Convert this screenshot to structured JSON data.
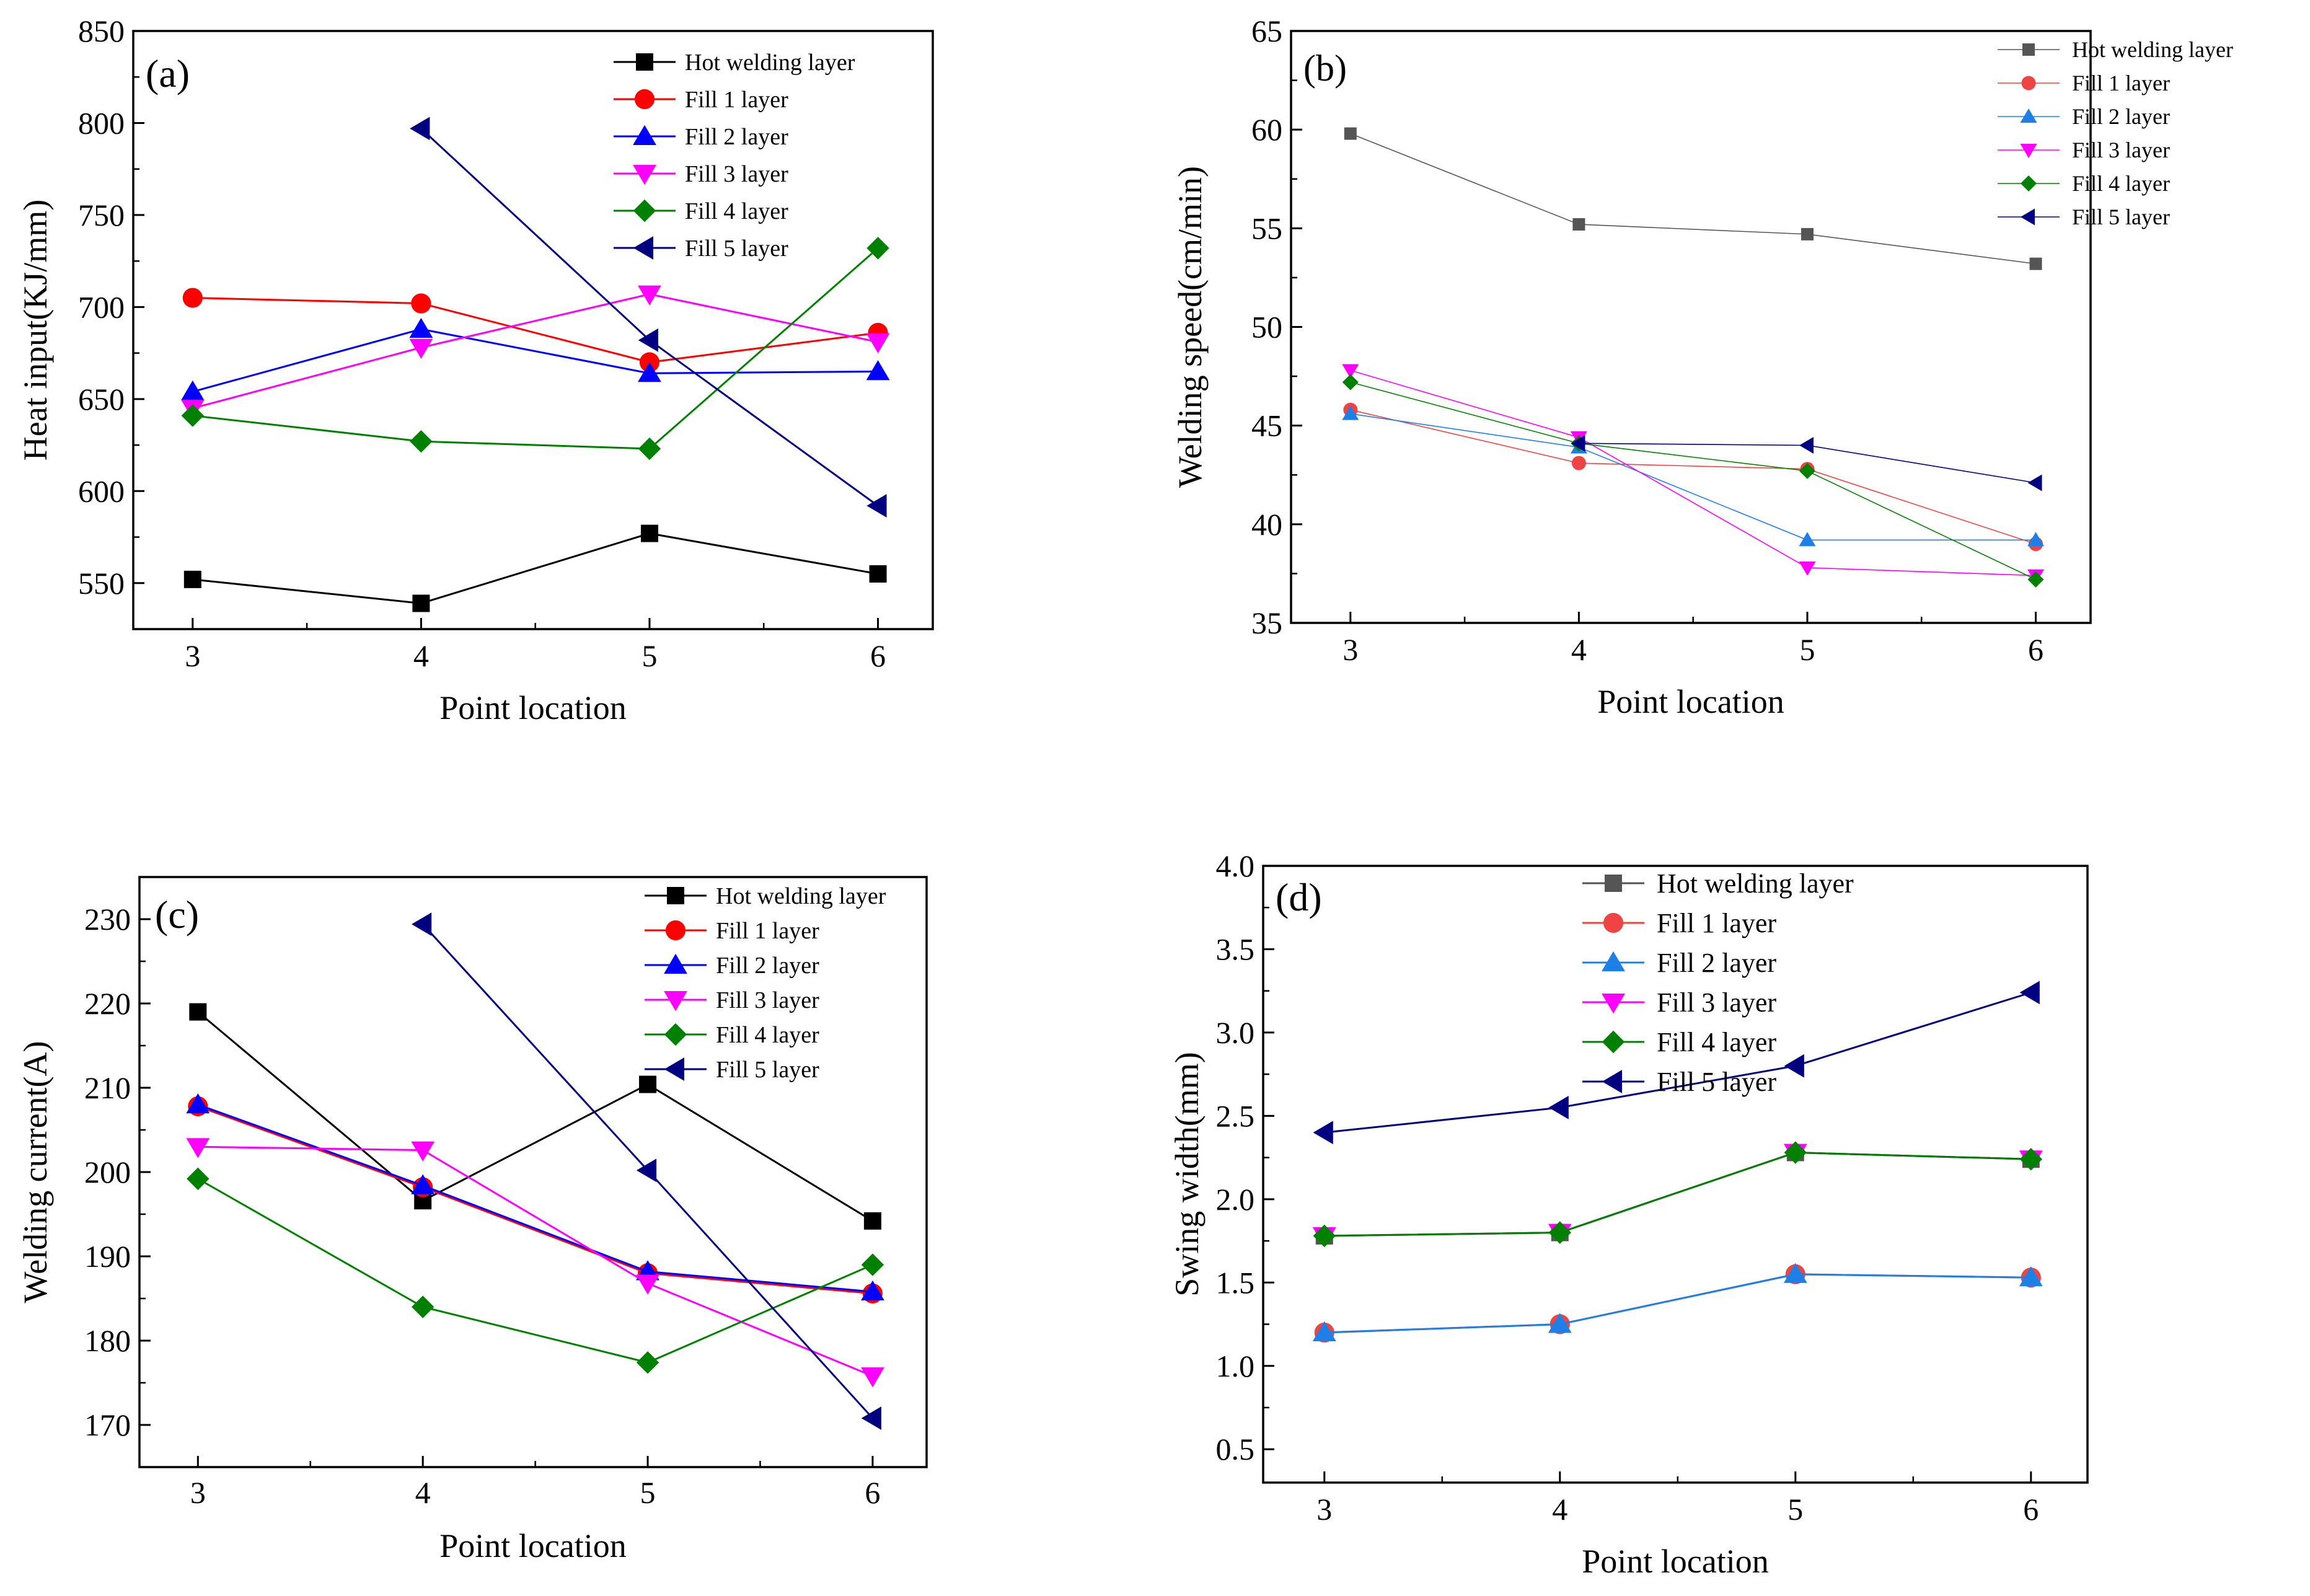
{
  "chart_data": [
    {
      "panel_label": "(a)",
      "type": "line",
      "xlabel": "Point location",
      "ylabel": "Heat input(KJ/mm)",
      "xlim": [
        2.74,
        6.24
      ],
      "ylim": [
        525,
        850
      ],
      "xticks": [
        3,
        4,
        5,
        6
      ],
      "yticks": [
        550,
        600,
        650,
        700,
        750,
        800,
        850
      ],
      "legend_position": "top-right",
      "marker_size": "large",
      "line_width": "normal",
      "series": [
        {
          "name": "Hot welding layer",
          "color": "#000000",
          "marker": "square",
          "x": [
            3,
            4,
            5,
            6
          ],
          "values": [
            552,
            539,
            577,
            555
          ]
        },
        {
          "name": "Fill 1  layer",
          "color": "#ff0000",
          "marker": "circle",
          "x": [
            3,
            4,
            5,
            6
          ],
          "values": [
            705,
            702,
            670,
            686
          ]
        },
        {
          "name": "Fill 2  layer",
          "color": "#0000ff",
          "marker": "triangle-up",
          "x": [
            3,
            4,
            5,
            6
          ],
          "values": [
            654,
            688,
            664,
            665
          ]
        },
        {
          "name": "Fill 3  layer",
          "color": "#ff00ff",
          "marker": "triangle-down",
          "x": [
            3,
            4,
            5,
            6
          ],
          "values": [
            645,
            678,
            707,
            681
          ]
        },
        {
          "name": "Fill 4  layer",
          "color": "#008000",
          "marker": "diamond",
          "x": [
            3,
            4,
            5,
            6
          ],
          "values": [
            641,
            627,
            623,
            732
          ]
        },
        {
          "name": "Fill 5  layer",
          "color": "#000080",
          "marker": "triangle-left",
          "x": [
            4,
            5,
            6
          ],
          "values": [
            797,
            682,
            592
          ]
        }
      ]
    },
    {
      "panel_label": "(b)",
      "type": "line",
      "xlabel": "Point location",
      "ylabel": "Welding speed(cm/min)",
      "xlim": [
        2.74,
        6.24
      ],
      "ylim": [
        35,
        65
      ],
      "xticks": [
        3,
        4,
        5,
        6
      ],
      "yticks": [
        35,
        40,
        45,
        50,
        55,
        60,
        65
      ],
      "legend_position": "top-right",
      "marker_size": "small",
      "line_width": "thin",
      "series": [
        {
          "name": "Hot welding layer",
          "color": "#555555",
          "marker": "square",
          "x": [
            3,
            4,
            5,
            6
          ],
          "values": [
            59.8,
            55.2,
            54.7,
            53.2
          ]
        },
        {
          "name": "Fill 1 layer",
          "color": "#ee4444",
          "marker": "circle",
          "x": [
            3,
            4,
            5,
            6
          ],
          "values": [
            45.8,
            43.1,
            42.8,
            39.0
          ]
        },
        {
          "name": "Fill 2 layer",
          "color": "#1e80e6",
          "marker": "triangle-up",
          "x": [
            3,
            4,
            5,
            6
          ],
          "values": [
            45.6,
            43.9,
            39.2,
            39.2
          ]
        },
        {
          "name": "Fill 3 layer",
          "color": "#ff00ff",
          "marker": "triangle-down",
          "x": [
            3,
            4,
            5,
            6
          ],
          "values": [
            47.8,
            44.4,
            37.8,
            37.4
          ]
        },
        {
          "name": "Fill 4 layer",
          "color": "#008000",
          "marker": "diamond",
          "x": [
            3,
            4,
            5,
            6
          ],
          "values": [
            47.2,
            44.1,
            42.7,
            37.2
          ]
        },
        {
          "name": "Fill 5 layer",
          "color": "#000080",
          "marker": "triangle-left",
          "x": [
            4,
            5,
            6
          ],
          "values": [
            44.1,
            44.0,
            42.1
          ]
        }
      ]
    },
    {
      "panel_label": "(c)",
      "type": "line",
      "xlabel": "Point location",
      "ylabel": "Welding current(A)",
      "xlim": [
        2.74,
        6.24
      ],
      "ylim": [
        165,
        235
      ],
      "xticks": [
        3,
        4,
        5,
        6
      ],
      "yticks": [
        170,
        180,
        190,
        200,
        210,
        220,
        230
      ],
      "legend_position": "top-right",
      "marker_size": "large",
      "line_width": "normal",
      "series": [
        {
          "name": "Hot welding layer",
          "color": "#000000",
          "marker": "square",
          "x": [
            3,
            4,
            5,
            6
          ],
          "values": [
            219.0,
            196.6,
            210.4,
            194.2
          ]
        },
        {
          "name": "Fill 1 layer",
          "color": "#ff0000",
          "marker": "circle",
          "x": [
            3,
            4,
            5,
            6
          ],
          "values": [
            207.8,
            198.2,
            188.0,
            185.6
          ]
        },
        {
          "name": "Fill 2 layer",
          "color": "#0000ff",
          "marker": "triangle-up",
          "x": [
            3,
            4,
            5,
            6
          ],
          "values": [
            208.0,
            198.4,
            188.2,
            185.8
          ]
        },
        {
          "name": "Fill 3 layer",
          "color": "#ff00ff",
          "marker": "triangle-down",
          "x": [
            3,
            4,
            5,
            6
          ],
          "values": [
            203.0,
            202.6,
            186.8,
            175.8
          ]
        },
        {
          "name": "Fill 4 layer",
          "color": "#008000",
          "marker": "diamond",
          "x": [
            3,
            4,
            5,
            6
          ],
          "values": [
            199.2,
            184.0,
            177.4,
            189.0
          ]
        },
        {
          "name": "Fill 5 layer",
          "color": "#000080",
          "marker": "triangle-left",
          "x": [
            4,
            5,
            6
          ],
          "values": [
            229.4,
            200.2,
            170.8
          ]
        }
      ]
    },
    {
      "panel_label": "(d)",
      "type": "line",
      "xlabel": "Point location",
      "ylabel": "Swing width(mm)",
      "xlim": [
        2.74,
        6.24
      ],
      "ylim": [
        0.3,
        4.0
      ],
      "xticks": [
        3,
        4,
        5,
        6
      ],
      "yticks": [
        0.5,
        1.0,
        1.5,
        2.0,
        2.5,
        3.0,
        3.5,
        4.0
      ],
      "ytick_labels": [
        "0.5",
        "1.0",
        "1.5",
        "2.0",
        "2.5",
        "3.0",
        "3.5",
        "4.0"
      ],
      "legend_position": "top-left",
      "marker_size": "large",
      "line_width": "normal",
      "series": [
        {
          "name": "Hot welding layer",
          "color": "#555555",
          "marker": "square",
          "x": [
            3,
            4,
            5,
            6
          ],
          "values": [
            1.78,
            1.8,
            2.28,
            2.24
          ]
        },
        {
          "name": "Fill 1 layer",
          "color": "#ee4444",
          "marker": "circle",
          "x": [
            3,
            4,
            5,
            6
          ],
          "values": [
            1.2,
            1.25,
            1.55,
            1.53
          ]
        },
        {
          "name": "Fill 2 layer",
          "color": "#1e80e6",
          "marker": "triangle-up",
          "x": [
            3,
            4,
            5,
            6
          ],
          "values": [
            1.2,
            1.25,
            1.55,
            1.53
          ]
        },
        {
          "name": "Fill 3 layer",
          "color": "#ff00ff",
          "marker": "triangle-down",
          "x": [
            3,
            4,
            5,
            6
          ],
          "values": [
            1.78,
            1.8,
            2.28,
            2.24
          ]
        },
        {
          "name": "Fill 4 layer",
          "color": "#008000",
          "marker": "diamond",
          "x": [
            3,
            4,
            5,
            6
          ],
          "values": [
            1.78,
            1.8,
            2.28,
            2.24
          ]
        },
        {
          "name": "Fill 5 layer",
          "color": "#000080",
          "marker": "triangle-left",
          "x": [
            3,
            4,
            5,
            6
          ],
          "values": [
            2.4,
            2.55,
            2.8,
            3.24
          ]
        }
      ]
    }
  ]
}
